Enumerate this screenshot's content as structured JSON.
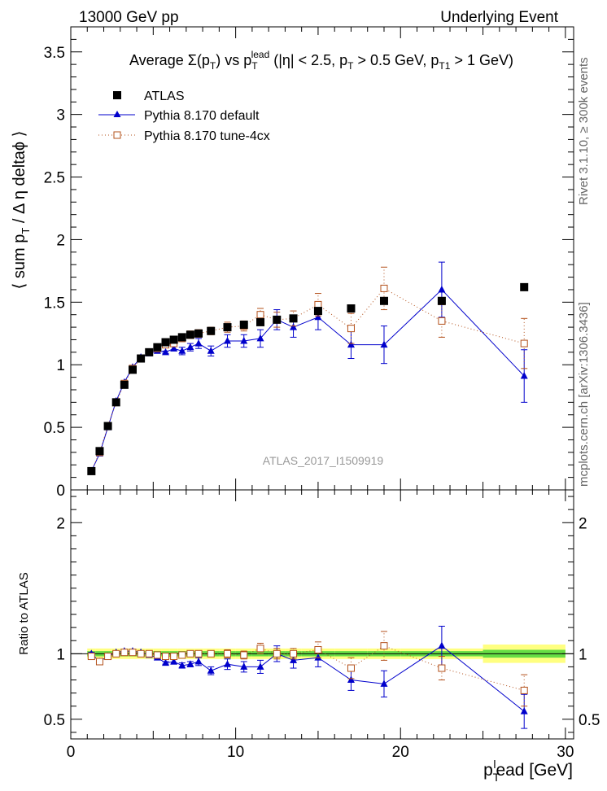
{
  "header": {
    "left": "13000 GeV pp",
    "right": "Underlying Event"
  },
  "side": {
    "rivet": "Rivet 3.1.10, ≥ 300k events",
    "url": "mcplots.cern.ch [arXiv:1306.3436]"
  },
  "watermark": "ATLAS_2017_I1509919",
  "chart_data": {
    "type": "scatter",
    "title": "Average Σ(pT) vs pT^lead (|η| < 2.5, pT > 0.5 GeV, pT1 > 1 GeV)",
    "title_parts": {
      "t1": "Average ",
      "t2": "Σ(p",
      "t3": "T",
      "t4": ") vs p",
      "t5": "T",
      "t6": "lead",
      "t7": " (|η| < 2.5, p",
      "t8": "T",
      "t9": " > 0.5 GeV, p",
      "t10": "T1",
      "t11": " > 1 GeV)"
    },
    "xlabel": {
      "a": "p",
      "b": "T",
      "c": "l",
      "d": "ead [GeV]"
    },
    "ylabel": {
      "a": "⟨ sum p",
      "b": "T",
      "c": " / Δ η deltaϕ ⟩"
    },
    "ratio_ylabel": "Ratio to ATLAS",
    "xlim": [
      0,
      30.5
    ],
    "ylim": [
      0,
      3.7
    ],
    "ratio_ylim": [
      0.35,
      2.25
    ],
    "x_ticks": [
      0,
      10,
      20,
      30
    ],
    "x_tick_labels": [
      "0",
      "10",
      "20",
      "30"
    ],
    "y_ticks": [
      0,
      0.5,
      1,
      1.5,
      2,
      2.5,
      3,
      3.5
    ],
    "y_tick_labels": [
      "0",
      "0.5",
      "1",
      "1.5",
      "2",
      "2.5",
      "3",
      "3.5"
    ],
    "ratio_ticks": [
      0.5,
      1,
      2
    ],
    "ratio_tick_labels": [
      "0.5",
      "1",
      "2"
    ],
    "legend": {
      "position": "top-left",
      "entries": [
        "ATLAS",
        "Pythia 8.170 default",
        "Pythia 8.170 tune-4cx"
      ]
    },
    "x": [
      1.25,
      1.75,
      2.25,
      2.75,
      3.25,
      3.75,
      4.25,
      4.75,
      5.25,
      5.75,
      6.25,
      6.75,
      7.25,
      7.75,
      8.5,
      9.5,
      10.5,
      11.5,
      12.5,
      13.5,
      15,
      17,
      19,
      22.5,
      27.5
    ],
    "series": [
      {
        "name": "ATLAS",
        "values": [
          0.15,
          0.31,
          0.51,
          0.7,
          0.84,
          0.96,
          1.05,
          1.1,
          1.14,
          1.18,
          1.2,
          1.22,
          1.24,
          1.25,
          1.27,
          1.3,
          1.32,
          1.34,
          1.36,
          1.37,
          1.43,
          1.45,
          1.51,
          1.51,
          1.62
        ],
        "errors": [
          0.01,
          0.01,
          0.01,
          0.01,
          0.01,
          0.01,
          0.01,
          0.01,
          0.01,
          0.01,
          0.01,
          0.01,
          0.01,
          0.01,
          0.01,
          0.01,
          0.01,
          0.01,
          0.01,
          0.01,
          0.01,
          0.01,
          0.01,
          0.01,
          0.01
        ],
        "color": "#000000"
      },
      {
        "name": "Pythia 8.170 default",
        "values": [
          0.15,
          0.29,
          0.5,
          0.71,
          0.86,
          0.98,
          1.06,
          1.09,
          1.11,
          1.1,
          1.13,
          1.11,
          1.14,
          1.17,
          1.11,
          1.19,
          1.19,
          1.21,
          1.36,
          1.3,
          1.38,
          1.16,
          1.16,
          1.6,
          0.91
        ],
        "errors": [
          0.01,
          0.01,
          0.01,
          0.01,
          0.01,
          0.01,
          0.01,
          0.01,
          0.01,
          0.01,
          0.02,
          0.03,
          0.03,
          0.04,
          0.04,
          0.05,
          0.05,
          0.07,
          0.08,
          0.08,
          0.1,
          0.11,
          0.15,
          0.22,
          0.21
        ],
        "color": "#0000cc"
      },
      {
        "name": "Pythia 8.170 tune-4cx",
        "values": [
          0.15,
          0.3,
          0.51,
          0.7,
          0.85,
          0.97,
          1.05,
          1.1,
          1.13,
          1.16,
          1.17,
          1.21,
          1.24,
          1.25,
          1.27,
          1.3,
          1.31,
          1.4,
          1.36,
          1.37,
          1.48,
          1.29,
          1.61,
          1.35,
          1.17
        ],
        "errors": [
          0.01,
          0.01,
          0.01,
          0.01,
          0.01,
          0.01,
          0.01,
          0.01,
          0.01,
          0.02,
          0.02,
          0.02,
          0.03,
          0.03,
          0.03,
          0.04,
          0.04,
          0.05,
          0.06,
          0.06,
          0.09,
          0.12,
          0.17,
          0.13,
          0.2
        ],
        "color": "#b3501a"
      }
    ],
    "ratio_series": [
      {
        "name": "Pythia 8.170 default",
        "values": [
          1.0,
          0.94,
          0.98,
          1.01,
          1.02,
          1.02,
          1.01,
          0.99,
          0.97,
          0.93,
          0.94,
          0.91,
          0.92,
          0.94,
          0.87,
          0.92,
          0.9,
          0.9,
          1.0,
          0.95,
          0.97,
          0.8,
          0.77,
          1.06,
          0.56
        ],
        "errors": [
          0.01,
          0.01,
          0.01,
          0.01,
          0.01,
          0.01,
          0.01,
          0.01,
          0.01,
          0.01,
          0.02,
          0.02,
          0.02,
          0.03,
          0.03,
          0.04,
          0.04,
          0.05,
          0.06,
          0.06,
          0.07,
          0.08,
          0.1,
          0.15,
          0.13
        ]
      },
      {
        "name": "Pythia 8.170 tune-4cx",
        "values": [
          0.98,
          0.94,
          0.98,
          1.0,
          1.01,
          1.01,
          1.0,
          1.0,
          0.99,
          0.98,
          0.98,
          0.99,
          1.0,
          1.0,
          1.0,
          1.0,
          0.99,
          1.04,
          1.0,
          1.0,
          1.03,
          0.89,
          1.06,
          0.89,
          0.72
        ],
        "errors": [
          0.01,
          0.01,
          0.01,
          0.01,
          0.01,
          0.01,
          0.01,
          0.01,
          0.01,
          0.01,
          0.02,
          0.02,
          0.02,
          0.02,
          0.02,
          0.03,
          0.03,
          0.04,
          0.04,
          0.04,
          0.06,
          0.08,
          0.11,
          0.09,
          0.12
        ]
      }
    ],
    "ratio_band": {
      "x_edges": [
        1.0,
        1.5,
        2.0,
        2.5,
        3.0,
        3.5,
        4.0,
        4.5,
        5.0,
        5.5,
        6.0,
        6.5,
        7.0,
        7.5,
        8.0,
        9.0,
        10.0,
        11.0,
        12.0,
        13.0,
        14.0,
        16.0,
        18.0,
        20.0,
        25.0,
        30.0
      ],
      "inner": [
        0.02,
        0.02,
        0.02,
        0.02,
        0.02,
        0.02,
        0.02,
        0.02,
        0.02,
        0.02,
        0.02,
        0.02,
        0.02,
        0.02,
        0.02,
        0.02,
        0.02,
        0.02,
        0.02,
        0.02,
        0.02,
        0.02,
        0.02,
        0.02,
        0.03
      ],
      "outer": [
        0.04,
        0.04,
        0.04,
        0.04,
        0.04,
        0.04,
        0.04,
        0.04,
        0.04,
        0.04,
        0.04,
        0.04,
        0.04,
        0.04,
        0.04,
        0.04,
        0.04,
        0.04,
        0.04,
        0.04,
        0.04,
        0.04,
        0.04,
        0.04,
        0.07
      ],
      "inner_color": "#66dd44",
      "outer_color": "#ffff80"
    }
  }
}
